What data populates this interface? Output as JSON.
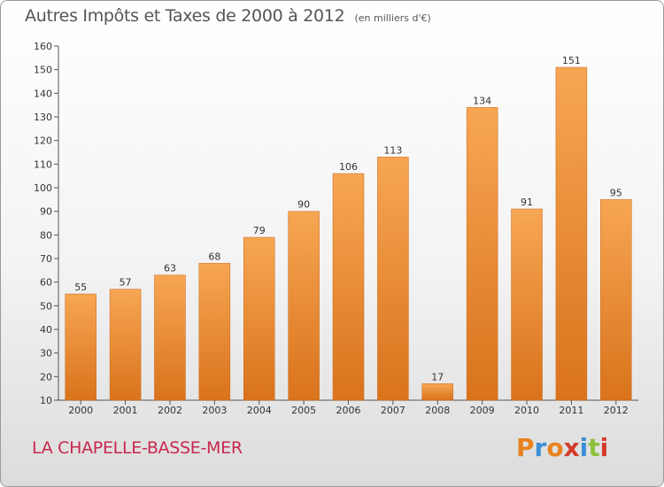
{
  "title": "Autres Impôts et Taxes de 2000 à 2012",
  "unit_note": "(en milliers d'€)",
  "commune": "LA CHAPELLE-BASSE-MER",
  "brand": {
    "letters": [
      "P",
      "r",
      "o",
      "x",
      "i",
      "t",
      "i"
    ],
    "colors": [
      "#e8821e",
      "#3a8fd6",
      "#e8821e",
      "#d33b2c",
      "#3a8fd6",
      "#8ac23a",
      "#d33b2c"
    ]
  },
  "colors": {
    "bar_light": "#f7a653",
    "bar_dark": "#d9731c",
    "title": "#555555",
    "commune": "#c8284e"
  },
  "chart_data": {
    "type": "bar",
    "title": "Autres Impôts et Taxes de 2000 à 2012",
    "xlabel": "",
    "ylabel": "",
    "categories": [
      "2000",
      "2001",
      "2002",
      "2003",
      "2004",
      "2005",
      "2006",
      "2007",
      "2008",
      "2009",
      "2010",
      "2011",
      "2012"
    ],
    "values": [
      55,
      57,
      63,
      68,
      79,
      90,
      106,
      113,
      17,
      134,
      91,
      151,
      95
    ],
    "ylim": [
      10,
      160
    ],
    "yticks": [
      10,
      20,
      30,
      40,
      50,
      60,
      70,
      80,
      90,
      100,
      110,
      120,
      130,
      140,
      150,
      160
    ],
    "grid": false,
    "legend": "none"
  }
}
